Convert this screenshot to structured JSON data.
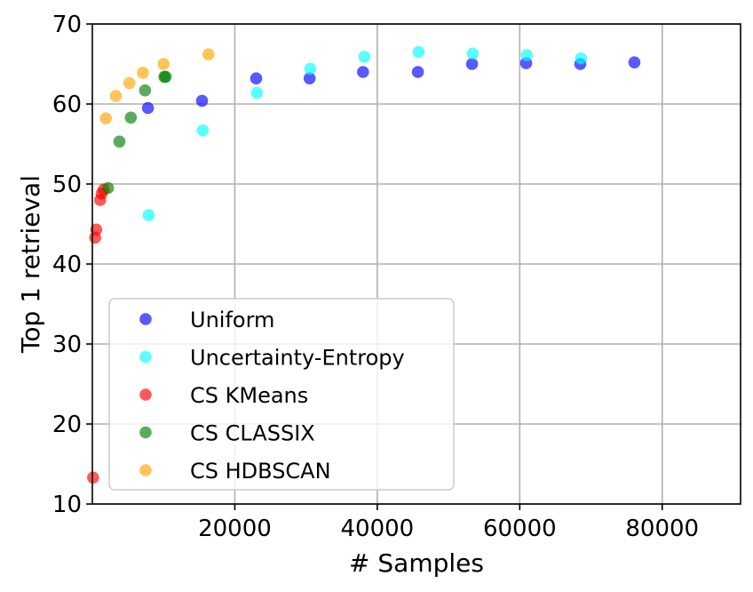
{
  "chart_data": {
    "type": "scatter",
    "title": "",
    "xlabel": "# Samples",
    "ylabel": "Top 1 retrieval",
    "xlim": [
      0,
      91000
    ],
    "ylim": [
      10,
      70
    ],
    "xticks": [
      20000,
      40000,
      60000,
      80000
    ],
    "yticks": [
      10,
      20,
      30,
      40,
      50,
      60,
      70
    ],
    "grid": true,
    "legend_position": "lower-left",
    "series": [
      {
        "name": "Uniform",
        "color": "#0000ff",
        "points": [
          [
            7800,
            59.5
          ],
          [
            15400,
            60.4
          ],
          [
            23000,
            63.2
          ],
          [
            30500,
            63.2
          ],
          [
            38000,
            64.0
          ],
          [
            45700,
            64.0
          ],
          [
            53300,
            65.0
          ],
          [
            60900,
            65.1
          ],
          [
            68500,
            65.0
          ],
          [
            76100,
            65.2
          ]
        ]
      },
      {
        "name": "Uncertainty-Entropy",
        "color": "#00ffff",
        "points": [
          [
            7900,
            46.1
          ],
          [
            15500,
            56.7
          ],
          [
            23100,
            61.4
          ],
          [
            30600,
            64.4
          ],
          [
            38200,
            65.9
          ],
          [
            45800,
            66.5
          ],
          [
            53400,
            66.3
          ],
          [
            61000,
            66.1
          ],
          [
            68600,
            65.7
          ]
        ]
      },
      {
        "name": "CS KMeans",
        "color": "#ff0000",
        "points": [
          [
            100,
            13.3
          ],
          [
            400,
            43.3
          ],
          [
            550,
            44.3
          ],
          [
            1100,
            48.0
          ],
          [
            1300,
            48.8
          ],
          [
            1600,
            49.3
          ]
        ]
      },
      {
        "name": "CS CLASSIX",
        "color": "#008000",
        "points": [
          [
            2200,
            49.5
          ],
          [
            3800,
            55.3
          ],
          [
            5400,
            58.3
          ],
          [
            7400,
            61.7
          ],
          [
            10100,
            63.4
          ],
          [
            10300,
            63.4
          ]
        ]
      },
      {
        "name": "CS HDBSCAN",
        "color": "#ffa500",
        "points": [
          [
            1900,
            58.2
          ],
          [
            3300,
            61.0
          ],
          [
            5200,
            62.6
          ],
          [
            7100,
            63.9
          ],
          [
            10000,
            65.0
          ],
          [
            16300,
            66.2
          ]
        ]
      }
    ]
  }
}
